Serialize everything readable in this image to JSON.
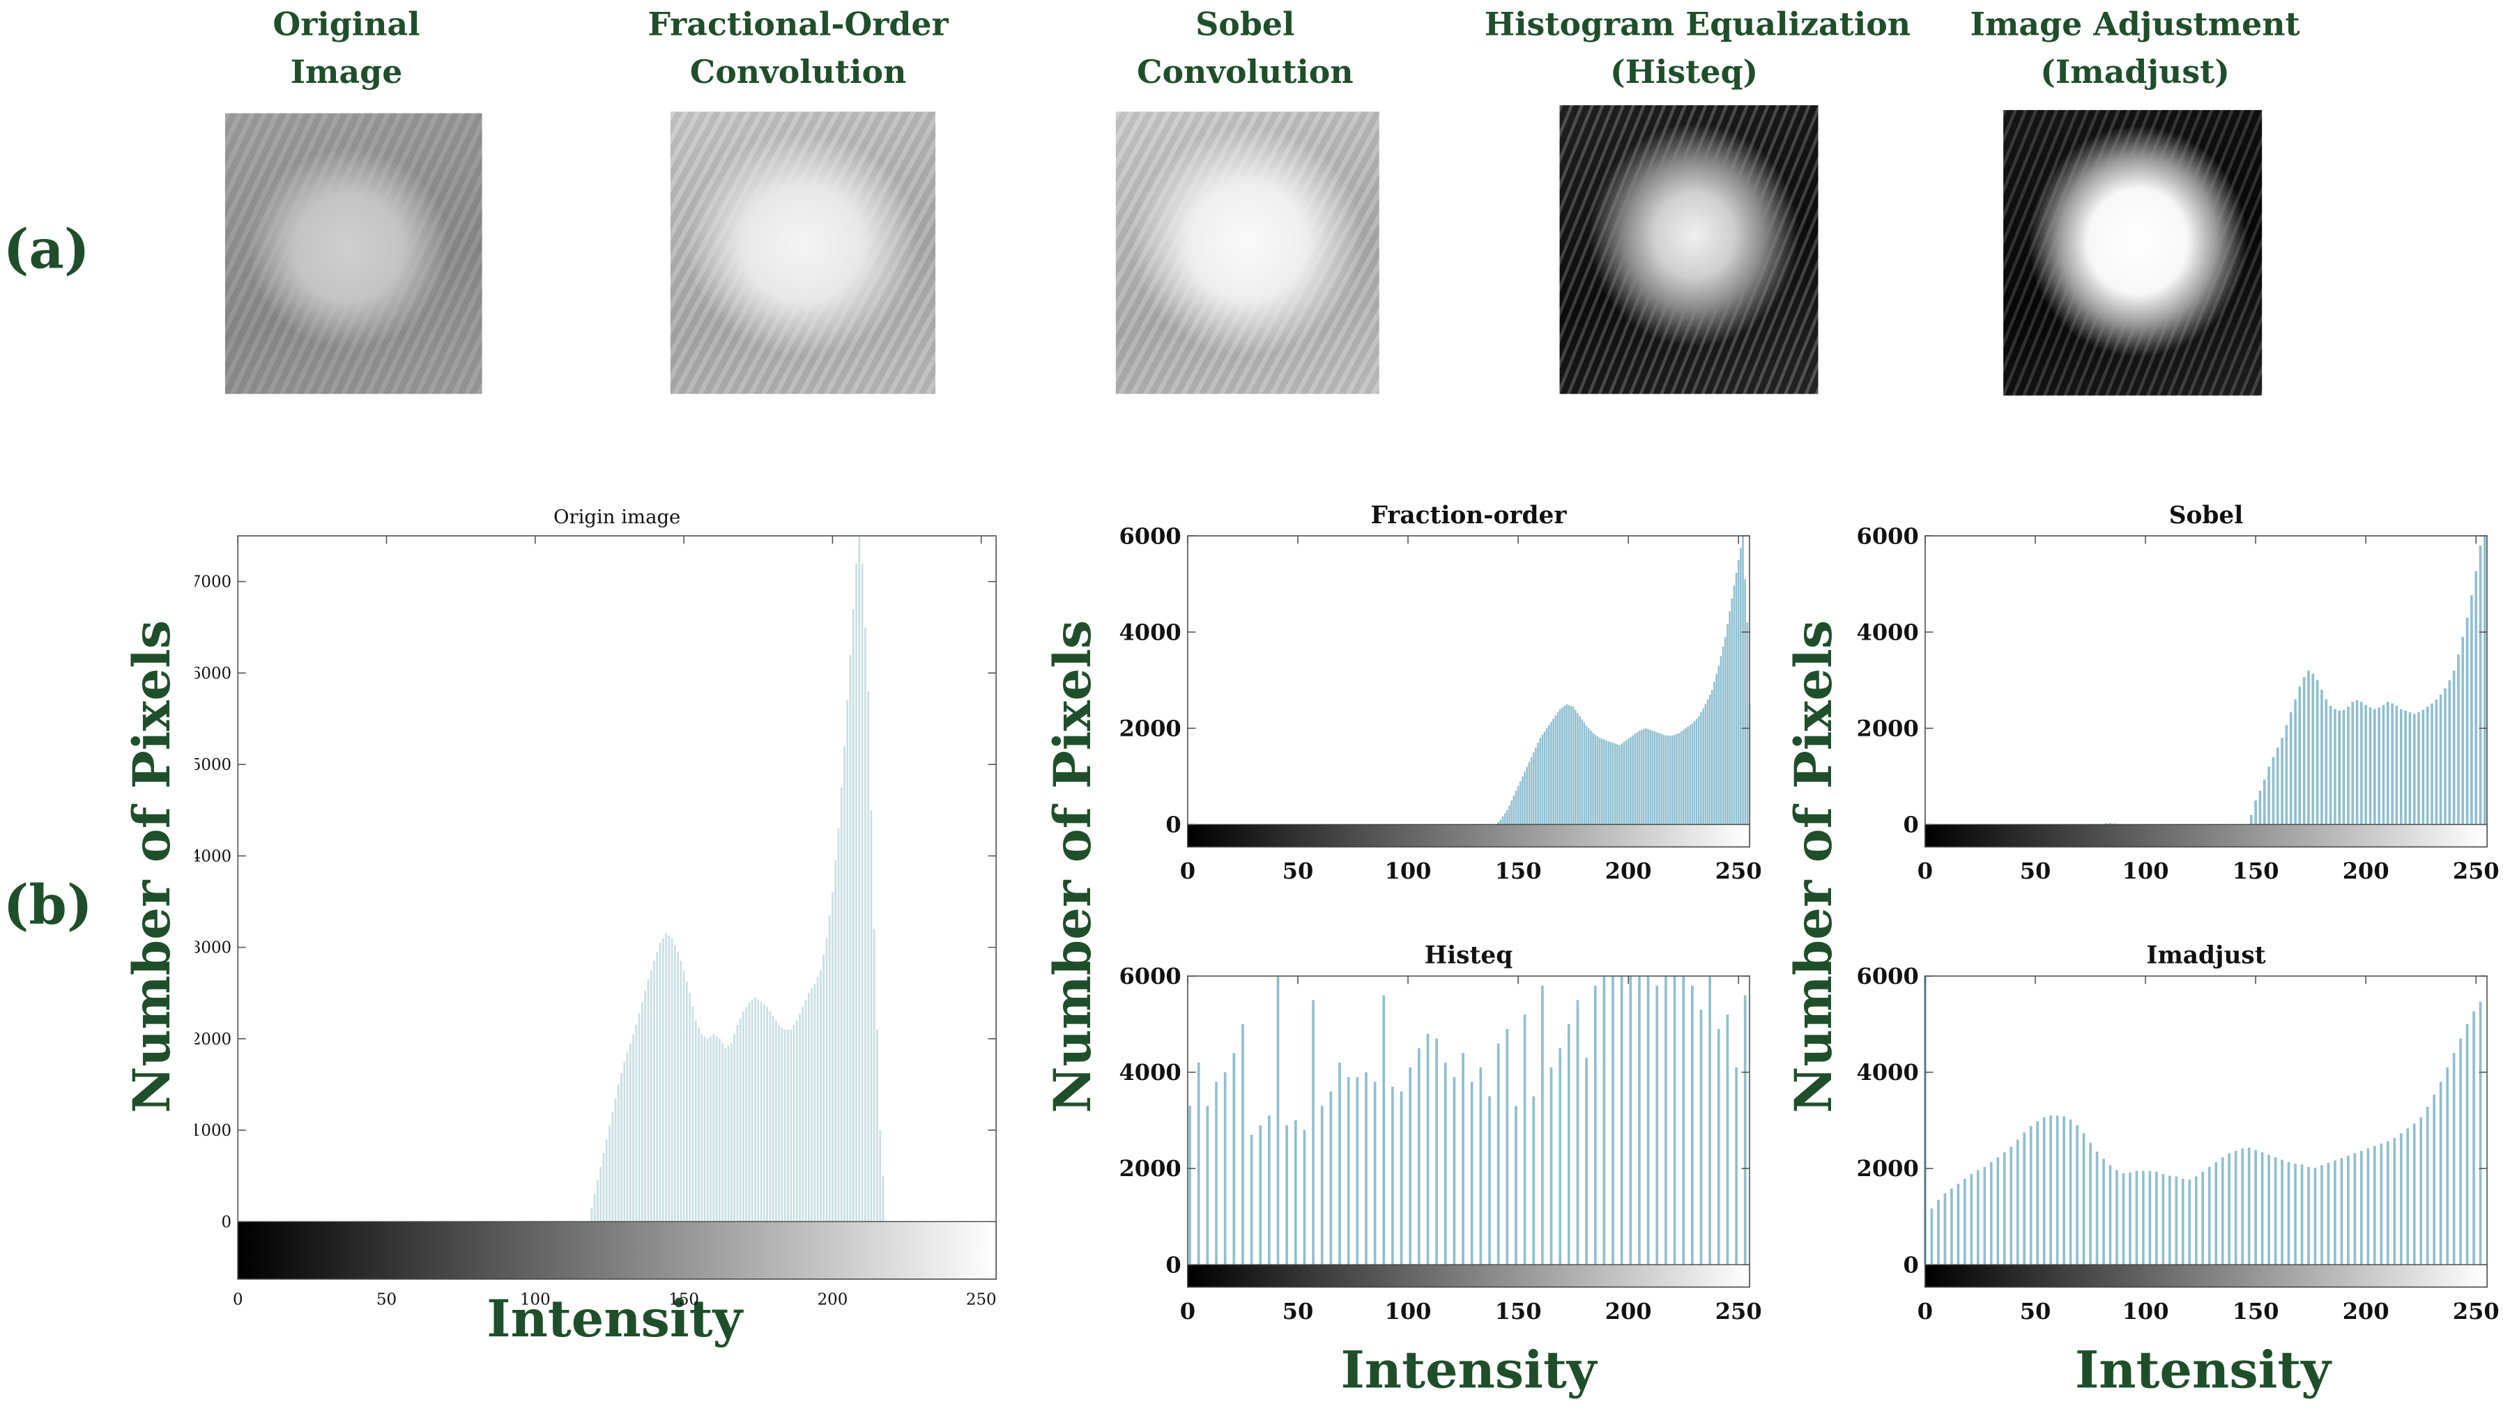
{
  "panel_labels": {
    "a": "(a)",
    "b": "(b)"
  },
  "images": [
    {
      "title_line1": "Original",
      "title_line2": "Image",
      "tone": "original"
    },
    {
      "title_line1": "Fractional-Order",
      "title_line2": "Convolution",
      "tone": "fractional"
    },
    {
      "title_line1": "Sobel",
      "title_line2": "Convolution",
      "tone": "sobel"
    },
    {
      "title_line1": "Histogram Equalization",
      "title_line2": "(Histeq)",
      "tone": "histeq"
    },
    {
      "title_line1": "Image Adjustment",
      "title_line2": "(Imadjust)",
      "tone": "imadjust"
    }
  ],
  "axis_text": {
    "ylabel": "Number of Pixels",
    "xlabel": "Intensity"
  },
  "colors": {
    "accent_text": "#1f4f2a",
    "bar_origin": "#c9dfe2",
    "bar_teal": "#8fbfd0"
  },
  "chart_data": [
    {
      "id": "origin",
      "type": "bar",
      "title": "Origin image",
      "xlim": [
        0,
        255
      ],
      "ylim": [
        0,
        7500
      ],
      "xticks": [
        0,
        50,
        100,
        150,
        200,
        250
      ],
      "yticks": [
        0,
        1000,
        2000,
        3000,
        4000,
        5000,
        6000,
        7000
      ],
      "grid": false,
      "colorbar": true,
      "points": [
        [
          118,
          0
        ],
        [
          120,
          300
        ],
        [
          122,
          600
        ],
        [
          124,
          900
        ],
        [
          126,
          1200
        ],
        [
          128,
          1500
        ],
        [
          130,
          1750
        ],
        [
          132,
          1950
        ],
        [
          134,
          2150
        ],
        [
          136,
          2400
        ],
        [
          138,
          2650
        ],
        [
          140,
          2850
        ],
        [
          142,
          3050
        ],
        [
          144,
          3150
        ],
        [
          146,
          3100
        ],
        [
          148,
          2950
        ],
        [
          150,
          2750
        ],
        [
          152,
          2500
        ],
        [
          154,
          2200
        ],
        [
          156,
          2050
        ],
        [
          158,
          2000
        ],
        [
          160,
          2050
        ],
        [
          162,
          2000
        ],
        [
          164,
          1900
        ],
        [
          166,
          1950
        ],
        [
          168,
          2150
        ],
        [
          170,
          2300
        ],
        [
          172,
          2400
        ],
        [
          174,
          2450
        ],
        [
          176,
          2400
        ],
        [
          178,
          2350
        ],
        [
          180,
          2250
        ],
        [
          182,
          2150
        ],
        [
          184,
          2100
        ],
        [
          186,
          2100
        ],
        [
          188,
          2200
        ],
        [
          190,
          2350
        ],
        [
          192,
          2500
        ],
        [
          194,
          2600
        ],
        [
          196,
          2750
        ],
        [
          198,
          3100
        ],
        [
          200,
          3600
        ],
        [
          202,
          4300
        ],
        [
          204,
          5200
        ],
        [
          206,
          6200
        ],
        [
          208,
          7200
        ],
        [
          209,
          7500
        ],
        [
          210,
          7200
        ],
        [
          212,
          5800
        ],
        [
          214,
          3200
        ],
        [
          216,
          1000
        ],
        [
          218,
          0
        ]
      ]
    },
    {
      "id": "fraction",
      "type": "bar",
      "title": "Fraction-order",
      "xlim": [
        0,
        255
      ],
      "ylim": [
        0,
        6000
      ],
      "xticks": [
        0,
        50,
        100,
        150,
        200,
        250
      ],
      "yticks": [
        0,
        2000,
        4000,
        6000
      ],
      "grid": false,
      "colorbar": true,
      "points": [
        [
          140,
          0
        ],
        [
          142,
          100
        ],
        [
          145,
          300
        ],
        [
          148,
          600
        ],
        [
          151,
          900
        ],
        [
          154,
          1200
        ],
        [
          157,
          1500
        ],
        [
          160,
          1800
        ],
        [
          163,
          2000
        ],
        [
          166,
          2200
        ],
        [
          169,
          2400
        ],
        [
          172,
          2500
        ],
        [
          175,
          2450
        ],
        [
          178,
          2250
        ],
        [
          181,
          2050
        ],
        [
          184,
          1900
        ],
        [
          187,
          1800
        ],
        [
          190,
          1750
        ],
        [
          193,
          1700
        ],
        [
          196,
          1650
        ],
        [
          199,
          1750
        ],
        [
          202,
          1850
        ],
        [
          205,
          1950
        ],
        [
          208,
          2000
        ],
        [
          211,
          1950
        ],
        [
          214,
          1900
        ],
        [
          217,
          1850
        ],
        [
          220,
          1850
        ],
        [
          223,
          1900
        ],
        [
          226,
          2000
        ],
        [
          229,
          2100
        ],
        [
          232,
          2250
        ],
        [
          235,
          2500
        ],
        [
          238,
          2800
        ],
        [
          241,
          3300
        ],
        [
          244,
          3900
        ],
        [
          247,
          4700
        ],
        [
          250,
          5500
        ],
        [
          252,
          6000
        ],
        [
          254,
          4200
        ],
        [
          255,
          2500
        ]
      ]
    },
    {
      "id": "sobel",
      "type": "bar",
      "title": "Sobel",
      "xlim": [
        0,
        255
      ],
      "ylim": [
        0,
        6000
      ],
      "xticks": [
        0,
        50,
        100,
        150,
        200,
        250
      ],
      "yticks": [
        0,
        2000,
        4000,
        6000
      ],
      "grid": false,
      "colorbar": true,
      "points": [
        [
          80,
          0
        ],
        [
          82,
          20
        ],
        [
          84,
          30
        ],
        [
          86,
          20
        ],
        [
          88,
          0
        ],
        [
          146,
          0
        ],
        [
          148,
          200
        ],
        [
          150,
          500
        ],
        [
          153,
          800
        ],
        [
          156,
          1200
        ],
        [
          159,
          1500
        ],
        [
          162,
          1800
        ],
        [
          165,
          2200
        ],
        [
          168,
          2600
        ],
        [
          171,
          3000
        ],
        [
          174,
          3200
        ],
        [
          177,
          3100
        ],
        [
          180,
          2800
        ],
        [
          183,
          2500
        ],
        [
          186,
          2400
        ],
        [
          189,
          2350
        ],
        [
          192,
          2450
        ],
        [
          195,
          2600
        ],
        [
          198,
          2550
        ],
        [
          201,
          2450
        ],
        [
          204,
          2400
        ],
        [
          207,
          2450
        ],
        [
          210,
          2550
        ],
        [
          213,
          2500
        ],
        [
          216,
          2400
        ],
        [
          219,
          2350
        ],
        [
          222,
          2300
        ],
        [
          225,
          2350
        ],
        [
          228,
          2450
        ],
        [
          231,
          2550
        ],
        [
          234,
          2700
        ],
        [
          237,
          2900
        ],
        [
          240,
          3200
        ],
        [
          243,
          3700
        ],
        [
          246,
          4300
        ],
        [
          249,
          5000
        ],
        [
          252,
          5800
        ],
        [
          254,
          6000
        ]
      ]
    },
    {
      "id": "histeq",
      "type": "bar",
      "title": "Histeq",
      "xlim": [
        0,
        255
      ],
      "ylim": [
        0,
        6000
      ],
      "xticks": [
        0,
        50,
        100,
        150,
        200,
        250
      ],
      "yticks": [
        0,
        2000,
        4000,
        6000
      ],
      "grid": false,
      "colorbar": true,
      "points": [
        [
          1,
          3300
        ],
        [
          5,
          4200
        ],
        [
          9,
          3300
        ],
        [
          13,
          3800
        ],
        [
          17,
          4000
        ],
        [
          21,
          4400
        ],
        [
          25,
          5000
        ],
        [
          29,
          2700
        ],
        [
          33,
          2900
        ],
        [
          37,
          3100
        ],
        [
          41,
          6000
        ],
        [
          45,
          2900
        ],
        [
          49,
          3000
        ],
        [
          53,
          2800
        ],
        [
          57,
          5500
        ],
        [
          61,
          3300
        ],
        [
          65,
          3600
        ],
        [
          69,
          4200
        ],
        [
          73,
          3900
        ],
        [
          77,
          3900
        ],
        [
          81,
          4000
        ],
        [
          85,
          3800
        ],
        [
          89,
          5600
        ],
        [
          93,
          3700
        ],
        [
          97,
          3600
        ],
        [
          101,
          4100
        ],
        [
          105,
          4500
        ],
        [
          109,
          4800
        ],
        [
          113,
          4700
        ],
        [
          117,
          4200
        ],
        [
          121,
          3900
        ],
        [
          125,
          4400
        ],
        [
          129,
          3800
        ],
        [
          133,
          4100
        ],
        [
          137,
          3500
        ],
        [
          141,
          4600
        ],
        [
          145,
          4900
        ],
        [
          149,
          3300
        ],
        [
          153,
          5200
        ],
        [
          157,
          3500
        ],
        [
          161,
          5800
        ],
        [
          165,
          4100
        ],
        [
          169,
          4500
        ],
        [
          173,
          5000
        ],
        [
          177,
          5500
        ],
        [
          181,
          4300
        ],
        [
          185,
          5800
        ],
        [
          189,
          6000
        ],
        [
          193,
          6000
        ],
        [
          197,
          6000
        ],
        [
          201,
          6000
        ],
        [
          205,
          6000
        ],
        [
          209,
          6000
        ],
        [
          213,
          5800
        ],
        [
          217,
          6000
        ],
        [
          221,
          6000
        ],
        [
          225,
          6000
        ],
        [
          229,
          5800
        ],
        [
          233,
          5300
        ],
        [
          237,
          6000
        ],
        [
          241,
          4900
        ],
        [
          245,
          5200
        ],
        [
          249,
          4100
        ],
        [
          253,
          5600
        ]
      ]
    },
    {
      "id": "imadjust",
      "type": "bar",
      "title": "Imadjust",
      "xlim": [
        0,
        255
      ],
      "ylim": [
        0,
        6000
      ],
      "xticks": [
        0,
        50,
        100,
        150,
        200,
        250
      ],
      "yticks": [
        0,
        2000,
        4000,
        6000
      ],
      "grid": false,
      "colorbar": true,
      "points": [
        [
          0,
          6000
        ],
        [
          2,
          1100
        ],
        [
          5,
          1300
        ],
        [
          8,
          1450
        ],
        [
          11,
          1550
        ],
        [
          14,
          1650
        ],
        [
          17,
          1750
        ],
        [
          20,
          1850
        ],
        [
          23,
          1950
        ],
        [
          26,
          2000
        ],
        [
          29,
          2100
        ],
        [
          32,
          2200
        ],
        [
          35,
          2300
        ],
        [
          38,
          2400
        ],
        [
          41,
          2550
        ],
        [
          44,
          2700
        ],
        [
          47,
          2850
        ],
        [
          50,
          2950
        ],
        [
          53,
          3050
        ],
        [
          56,
          3100
        ],
        [
          59,
          3100
        ],
        [
          62,
          3100
        ],
        [
          65,
          3050
        ],
        [
          68,
          2950
        ],
        [
          71,
          2800
        ],
        [
          74,
          2600
        ],
        [
          77,
          2400
        ],
        [
          80,
          2250
        ],
        [
          83,
          2100
        ],
        [
          86,
          2000
        ],
        [
          89,
          1900
        ],
        [
          92,
          1900
        ],
        [
          95,
          1950
        ],
        [
          98,
          1950
        ],
        [
          101,
          1950
        ],
        [
          104,
          1950
        ],
        [
          107,
          1900
        ],
        [
          110,
          1850
        ],
        [
          113,
          1850
        ],
        [
          116,
          1800
        ],
        [
          119,
          1750
        ],
        [
          122,
          1800
        ],
        [
          125,
          1900
        ],
        [
          128,
          2000
        ],
        [
          131,
          2100
        ],
        [
          134,
          2200
        ],
        [
          137,
          2300
        ],
        [
          140,
          2350
        ],
        [
          143,
          2400
        ],
        [
          146,
          2450
        ],
        [
          149,
          2400
        ],
        [
          152,
          2350
        ],
        [
          155,
          2300
        ],
        [
          158,
          2250
        ],
        [
          161,
          2200
        ],
        [
          164,
          2150
        ],
        [
          167,
          2100
        ],
        [
          170,
          2100
        ],
        [
          173,
          2050
        ],
        [
          176,
          2000
        ],
        [
          179,
          2050
        ],
        [
          182,
          2100
        ],
        [
          185,
          2150
        ],
        [
          188,
          2200
        ],
        [
          191,
          2250
        ],
        [
          194,
          2300
        ],
        [
          197,
          2350
        ],
        [
          200,
          2400
        ],
        [
          203,
          2450
        ],
        [
          206,
          2500
        ],
        [
          209,
          2550
        ],
        [
          212,
          2600
        ],
        [
          215,
          2700
        ],
        [
          218,
          2800
        ],
        [
          221,
          2900
        ],
        [
          224,
          3000
        ],
        [
          227,
          3200
        ],
        [
          230,
          3450
        ],
        [
          233,
          3700
        ],
        [
          236,
          4000
        ],
        [
          239,
          4300
        ],
        [
          242,
          4600
        ],
        [
          245,
          4900
        ],
        [
          248,
          5200
        ],
        [
          251,
          5400
        ],
        [
          254,
          5600
        ]
      ]
    }
  ]
}
